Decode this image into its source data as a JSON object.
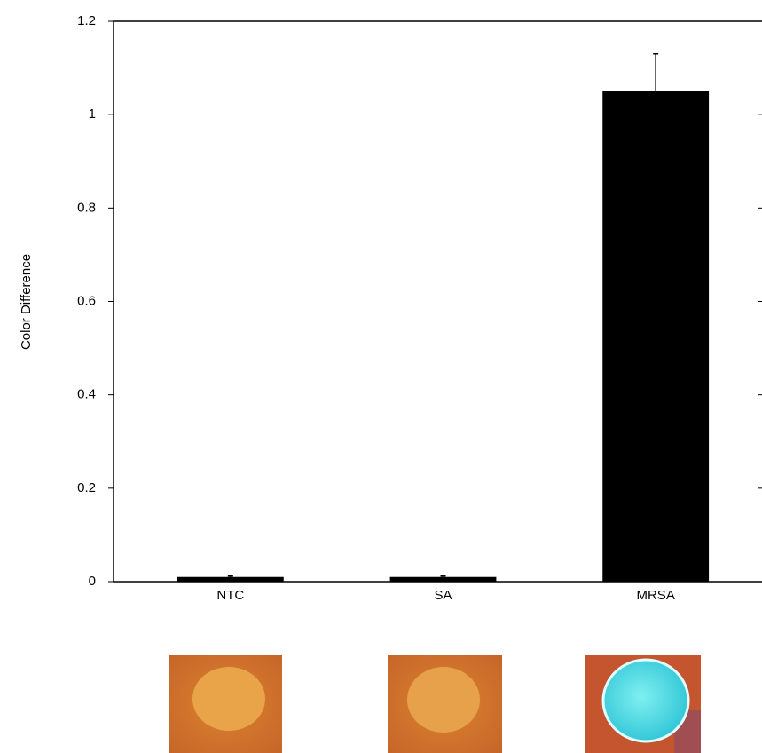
{
  "chart_data": {
    "type": "bar",
    "ylabel": "Color Difference",
    "categories": [
      "NTC",
      "SA",
      "MRSA"
    ],
    "values": [
      0.01,
      0.01,
      1.05
    ],
    "errors": [
      0.002,
      0.002,
      0.08
    ],
    "color": "#000000",
    "ylim": [
      0,
      1.2
    ],
    "yticks": [
      0,
      0.2,
      0.4,
      0.6,
      0.8,
      1,
      1.2
    ],
    "grid": false
  }
}
